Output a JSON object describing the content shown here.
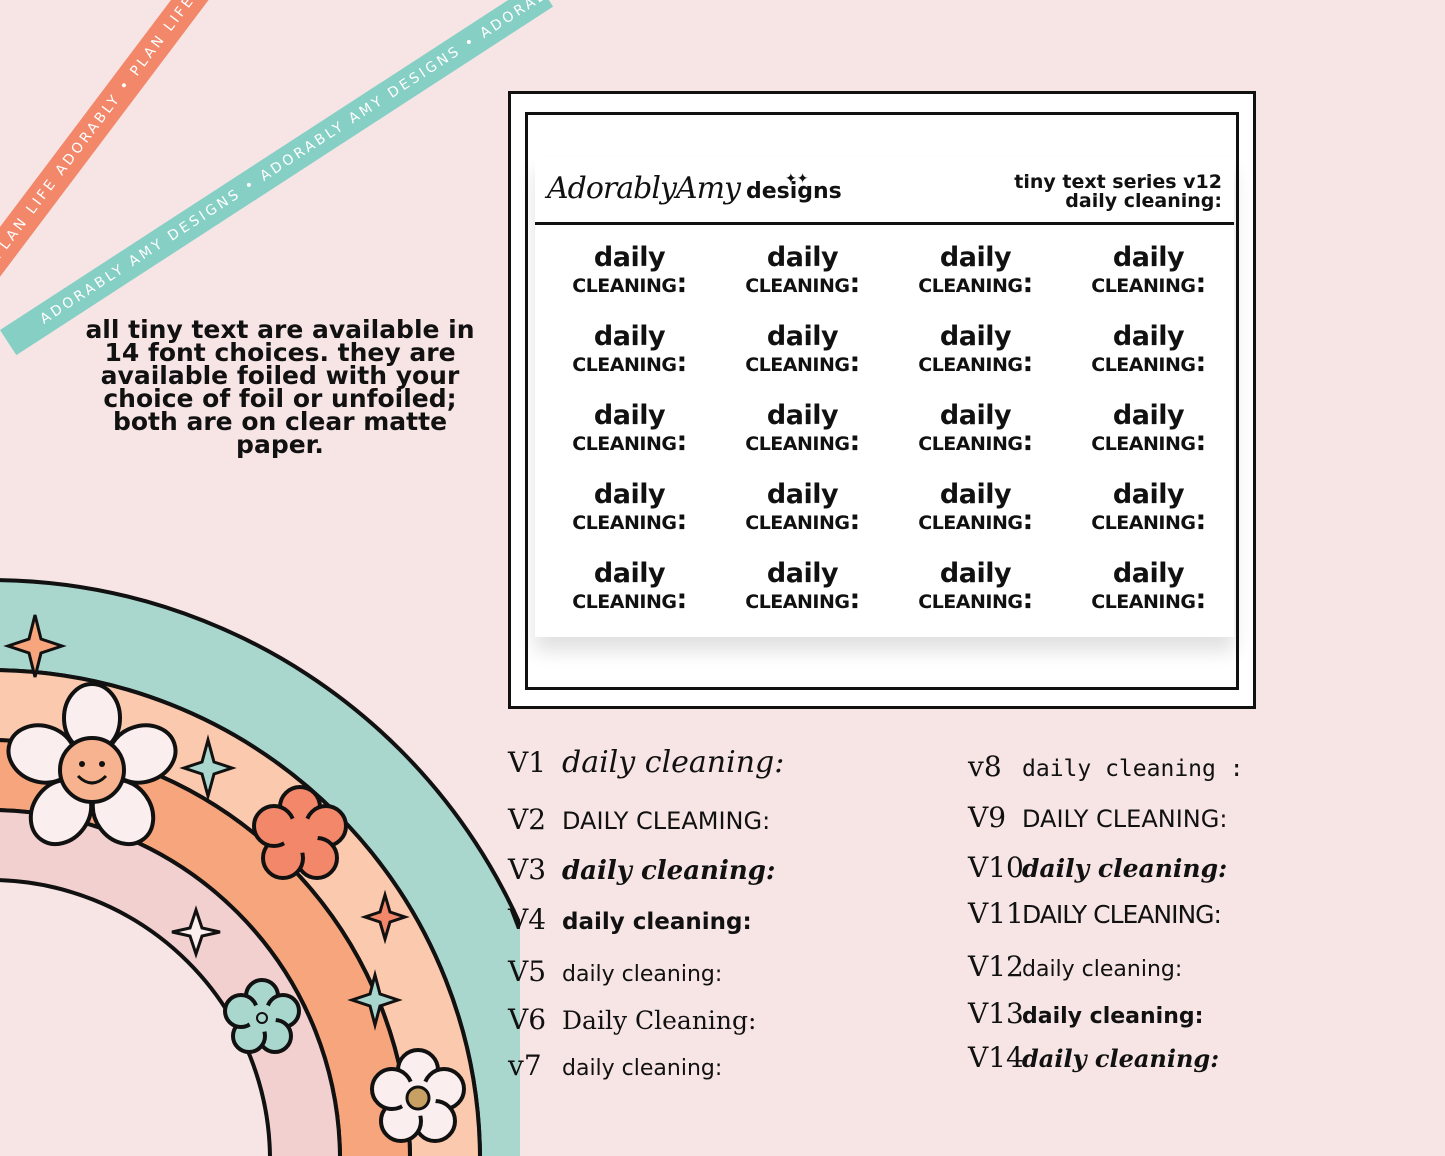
{
  "ribbons": {
    "coral_text": "PLAN LIFE ADORABLY • PLAN LIFE ADORABLY • PLAN LIFE ADORABLY •",
    "mint_text": "ADORABLY AMY DESIGNS • ADORABLY AMY DESIGNS • ADORABLY AMY DESIGNS •"
  },
  "info_text": "all tiny text are available in 14 font choices. they are available foiled with your choice of foil or unfoiled; both are on clear matte paper.",
  "sheet": {
    "brand": "AdorablyAmy",
    "brand_suffix": "designs",
    "series_line1": "tiny text series v12",
    "series_line2": "daily cleaning:",
    "sticker_line1": "daily",
    "sticker_line2": "cleaning:",
    "sticker_count": 20
  },
  "fonts_left": [
    {
      "version": "V1",
      "text": "daily cleaning:"
    },
    {
      "version": "V2",
      "text": "DAILY CLEAMING:"
    },
    {
      "version": "V3",
      "text": "daily cleaning:"
    },
    {
      "version": "V4",
      "text": "daily cleaning:"
    },
    {
      "version": "V5",
      "text": "daily cleaning:"
    },
    {
      "version": "V6",
      "text": "Daily Cleaning:"
    },
    {
      "version": "v7",
      "text": "daily cleaning:"
    }
  ],
  "fonts_right": [
    {
      "version": "v8",
      "text": "daily cleaning :"
    },
    {
      "version": "V9",
      "text": "DAILY CLEANING:"
    },
    {
      "version": "V10",
      "text": "daily cleaning:"
    },
    {
      "version": "V11",
      "text": "DAILY CLEANING:"
    },
    {
      "version": "V12",
      "text": "daily cleaning:"
    },
    {
      "version": "V13",
      "text": "daily cleaning:"
    },
    {
      "version": "V14",
      "text": "daily cleaning:"
    }
  ],
  "colors": {
    "background": "#f7e5e5",
    "coral": "#f2876a",
    "mint": "#86cfc5",
    "peach": "#f6a57c",
    "light_peach": "#fbc9ae",
    "pink": "#f2d0cf"
  }
}
